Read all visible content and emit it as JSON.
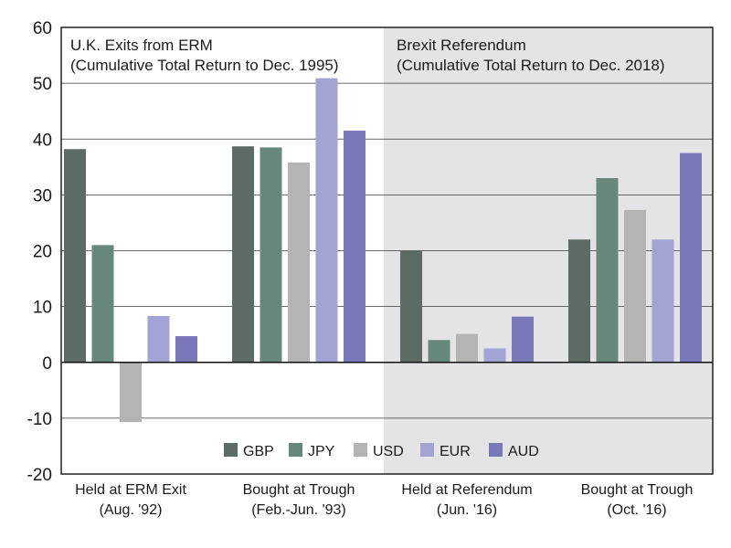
{
  "chart_data": {
    "type": "bar",
    "ylim": [
      -20,
      60
    ],
    "yticks": [
      -20,
      -10,
      0,
      10,
      20,
      30,
      40,
      50,
      60
    ],
    "grid": true,
    "legend_position": "bottom-center",
    "colors": {
      "GBP": "#5c6b64",
      "JPY": "#67877b",
      "USD": "#b4b4b3",
      "EUR": "#a3a4d3",
      "AUD": "#7b78ba",
      "shade": "#e4e4e6"
    },
    "panels": [
      {
        "title_line1": "U.K. Exits from ERM",
        "title_line2": "(Cumulative Total Return to Dec. 1995)",
        "shaded": false
      },
      {
        "title_line1": "Brexit Referendum",
        "title_line2": "(Cumulative Total Return to Dec. 2018)",
        "shaded": true
      }
    ],
    "categories": [
      {
        "line1": "Held at ERM Exit",
        "line2": "(Aug. '92)"
      },
      {
        "line1": "Bought at Trough",
        "line2": "(Feb.-Jun. '93)"
      },
      {
        "line1": "Held at Referendum",
        "line2": "(Jun. '16)"
      },
      {
        "line1": "Bought at Trough",
        "line2": "(Oct. '16)"
      }
    ],
    "series": [
      {
        "name": "GBP",
        "values": [
          38.2,
          38.7,
          20.0,
          22.0
        ]
      },
      {
        "name": "JPY",
        "values": [
          21.0,
          38.5,
          4.0,
          33.0
        ]
      },
      {
        "name": "USD",
        "values": [
          -10.7,
          35.8,
          5.1,
          27.3
        ]
      },
      {
        "name": "EUR",
        "values": [
          8.3,
          50.9,
          2.5,
          22.0
        ]
      },
      {
        "name": "AUD",
        "values": [
          4.7,
          41.5,
          8.2,
          37.5
        ]
      }
    ]
  }
}
